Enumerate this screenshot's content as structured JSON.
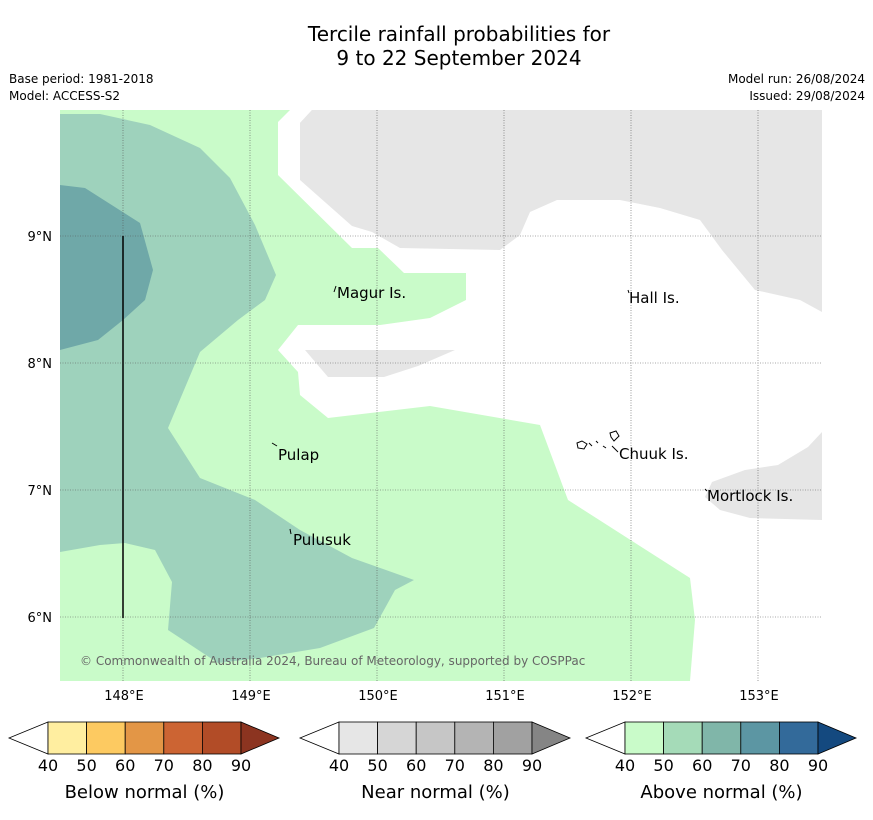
{
  "title_line1": "Tercile rainfall probabilities for",
  "title_line2": "9 to 22 September 2024",
  "base_period": "Base period: 1981-2018",
  "model": "Model: ACCESS-S2",
  "model_run": "Model run: 26/08/2024",
  "issued": "Issued: 29/08/2024",
  "map": {
    "lat_labels": [
      "9°N",
      "8°N",
      "7°N",
      "6°N"
    ],
    "lon_labels": [
      "148°E",
      "149°E",
      "150°E",
      "151°E",
      "152°E",
      "153°E"
    ],
    "places": [
      {
        "name": "Magur Is."
      },
      {
        "name": "Hall Is."
      },
      {
        "name": "Pulap"
      },
      {
        "name": "Chuuk Is."
      },
      {
        "name": "Mortlock Is."
      },
      {
        "name": "Pulusuk"
      }
    ],
    "copyright": "© Commonwealth of Australia 2024, Bureau of Meteorology, supported by COSPPac",
    "colors": {
      "above_40": "#c9fbc9",
      "above_50": "#9ed2bc",
      "above_60": "#6fa8a8",
      "near_40": "#e6e6e6"
    }
  },
  "legends": [
    {
      "label": "Below normal (%)",
      "ticks": [
        "40",
        "50",
        "60",
        "70",
        "80",
        "90"
      ],
      "colors": [
        "#ffeea0",
        "#fdca61",
        "#e39646",
        "#cc6433",
        "#b24c27",
        "#8c3420"
      ]
    },
    {
      "label": "Near normal (%)",
      "ticks": [
        "40",
        "50",
        "60",
        "70",
        "80",
        "90"
      ],
      "colors": [
        "#e6e6e6",
        "#d6d6d6",
        "#c6c6c6",
        "#b4b4b4",
        "#a1a1a1",
        "#858585"
      ]
    },
    {
      "label": "Above normal (%)",
      "ticks": [
        "40",
        "50",
        "60",
        "70",
        "80",
        "90"
      ],
      "colors": [
        "#c9fbc9",
        "#a5dbb8",
        "#80b6a9",
        "#5c96a3",
        "#336a9a",
        "#14497f"
      ]
    }
  ]
}
